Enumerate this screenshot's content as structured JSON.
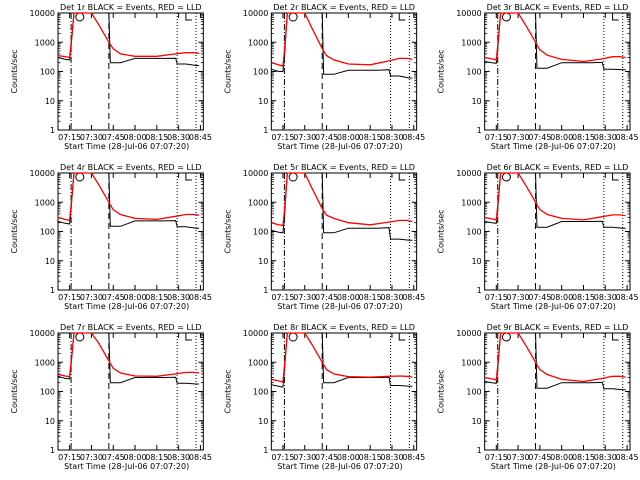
{
  "colors": {
    "events": "#000000",
    "lld": "#ff0000",
    "axes": "#000000",
    "background": "#ffffff"
  },
  "chart_data": [
    {
      "type": "line",
      "title": "Det 1r BLACK = Events, RED = LLD",
      "xlabel": "Start Time (28-Jul-06 07:07:20)",
      "ylabel": "Counts/sec",
      "scale": "log",
      "ylim": [
        1,
        10000
      ],
      "xticks": [
        "07:15",
        "07:30",
        "07:45",
        "08:00",
        "08:15",
        "08:30",
        "08:45"
      ],
      "yticks": [
        "1",
        "10",
        "100",
        "1000",
        "10000"
      ],
      "markers": {
        "dashdot": "07:16",
        "dashed": "07:42",
        "dotted": [
          "08:29",
          "08:42"
        ]
      },
      "series": [
        {
          "name": "Events",
          "x": [
            "07:07",
            "07:12",
            "07:15",
            "07:16",
            "07:18",
            "07:20",
            "07:42",
            "07:43",
            "07:50",
            "08:00",
            "08:10",
            "08:20",
            "08:28",
            "08:29",
            "08:35",
            "08:42",
            "08:44"
          ],
          "y": [
            300,
            260,
            250,
            700,
            10000,
            10000,
            10000,
            200,
            200,
            280,
            280,
            280,
            285,
            180,
            180,
            160,
            160
          ]
        },
        {
          "name": "LLD",
          "x": [
            "07:07",
            "07:12",
            "07:15",
            "07:16",
            "07:18",
            "07:30",
            "07:35",
            "07:42",
            "07:45",
            "07:50",
            "08:00",
            "08:15",
            "08:28",
            "08:35",
            "08:40",
            "08:44"
          ],
          "y": [
            350,
            320,
            300,
            900,
            10000,
            10000,
            4000,
            1000,
            600,
            400,
            330,
            330,
            400,
            440,
            440,
            420
          ]
        }
      ]
    },
    {
      "type": "line",
      "title": "Det 2r BLACK = Events, RED = LLD",
      "xlabel": "Start Time (28-Jul-06 07:07:20)",
      "ylabel": "Counts/sec",
      "scale": "log",
      "ylim": [
        1,
        10000
      ],
      "xticks": [
        "07:15",
        "07:30",
        "07:45",
        "08:00",
        "08:15",
        "08:30",
        "08:45"
      ],
      "yticks": [
        "1",
        "10",
        "100",
        "1000",
        "10000"
      ],
      "markers": {
        "dashdot": "07:16",
        "dashed": "07:42",
        "dotted": [
          "08:29",
          "08:42"
        ]
      },
      "series": [
        {
          "name": "Events",
          "x": [
            "07:07",
            "07:12",
            "07:15",
            "07:16",
            "07:18",
            "07:20",
            "07:42",
            "07:43",
            "07:50",
            "08:00",
            "08:10",
            "08:20",
            "08:28",
            "08:29",
            "08:35",
            "08:42",
            "08:44"
          ],
          "y": [
            120,
            100,
            100,
            300,
            10000,
            10000,
            10000,
            80,
            80,
            110,
            110,
            110,
            115,
            70,
            70,
            60,
            60
          ]
        },
        {
          "name": "LLD",
          "x": [
            "07:07",
            "07:12",
            "07:15",
            "07:16",
            "07:18",
            "07:30",
            "07:35",
            "07:42",
            "07:45",
            "07:50",
            "08:00",
            "08:15",
            "08:28",
            "08:35",
            "08:40",
            "08:44"
          ],
          "y": [
            200,
            170,
            150,
            500,
            10000,
            10000,
            3000,
            600,
            350,
            250,
            180,
            170,
            230,
            280,
            280,
            260
          ]
        }
      ]
    },
    {
      "type": "line",
      "title": "Det 3r BLACK = Events, RED = LLD",
      "xlabel": "Start Time (28-Jul-06 07:07:20)",
      "ylabel": "Counts/sec",
      "scale": "log",
      "ylim": [
        1,
        10000
      ],
      "xticks": [
        "07:15",
        "07:30",
        "07:45",
        "08:00",
        "08:15",
        "08:30",
        "08:45"
      ],
      "yticks": [
        "1",
        "10",
        "100",
        "1000",
        "10000"
      ],
      "markers": {
        "dashdot": "07:16",
        "dashed": "07:42",
        "dotted": [
          "08:29",
          "08:42"
        ]
      },
      "series": [
        {
          "name": "Events",
          "x": [
            "07:07",
            "07:12",
            "07:15",
            "07:16",
            "07:18",
            "07:20",
            "07:42",
            "07:43",
            "07:50",
            "08:00",
            "08:10",
            "08:20",
            "08:28",
            "08:29",
            "08:35",
            "08:42",
            "08:44"
          ],
          "y": [
            220,
            200,
            190,
            600,
            10000,
            10000,
            10000,
            130,
            130,
            200,
            200,
            200,
            205,
            120,
            120,
            115,
            115
          ]
        },
        {
          "name": "LLD",
          "x": [
            "07:07",
            "07:12",
            "07:15",
            "07:16",
            "07:18",
            "07:30",
            "07:35",
            "07:42",
            "07:45",
            "07:50",
            "08:00",
            "08:15",
            "08:28",
            "08:35",
            "08:40",
            "08:44"
          ],
          "y": [
            300,
            270,
            250,
            800,
            10000,
            10000,
            4000,
            1000,
            550,
            360,
            260,
            220,
            270,
            320,
            320,
            300
          ]
        }
      ]
    },
    {
      "type": "line",
      "title": "Det 4r BLACK = Events, RED = LLD",
      "xlabel": "Start Time (28-Jul-06 07:07:20)",
      "ylabel": "Counts/sec",
      "scale": "log",
      "ylim": [
        1,
        10000
      ],
      "xticks": [
        "07:15",
        "07:30",
        "07:45",
        "08:00",
        "08:15",
        "08:30",
        "08:45"
      ],
      "yticks": [
        "1",
        "10",
        "100",
        "1000",
        "10000"
      ],
      "markers": {
        "dashdot": "07:16",
        "dashed": "07:42",
        "dotted": [
          "08:29",
          "08:42"
        ]
      },
      "series": [
        {
          "name": "Events",
          "x": [
            "07:07",
            "07:12",
            "07:15",
            "07:16",
            "07:18",
            "07:20",
            "07:42",
            "07:43",
            "07:50",
            "08:00",
            "08:10",
            "08:20",
            "08:28",
            "08:29",
            "08:35",
            "08:42",
            "08:44"
          ],
          "y": [
            220,
            190,
            180,
            600,
            10000,
            10000,
            10000,
            150,
            150,
            230,
            230,
            230,
            235,
            145,
            145,
            130,
            130
          ]
        },
        {
          "name": "LLD",
          "x": [
            "07:07",
            "07:12",
            "07:15",
            "07:16",
            "07:18",
            "07:30",
            "07:35",
            "07:42",
            "07:45",
            "07:50",
            "08:00",
            "08:15",
            "08:28",
            "08:35",
            "08:40",
            "08:44"
          ],
          "y": [
            300,
            260,
            240,
            800,
            10000,
            10000,
            4000,
            1000,
            550,
            380,
            280,
            260,
            330,
            380,
            380,
            360
          ]
        }
      ]
    },
    {
      "type": "line",
      "title": "Det 5r BLACK = Events, RED = LLD",
      "xlabel": "Start Time (28-Jul-06 07:07:20)",
      "ylabel": "Counts/sec",
      "scale": "log",
      "ylim": [
        1,
        10000
      ],
      "xticks": [
        "07:15",
        "07:30",
        "07:45",
        "08:00",
        "08:15",
        "08:30",
        "08:45"
      ],
      "yticks": [
        "1",
        "10",
        "100",
        "1000",
        "10000"
      ],
      "markers": {
        "dashdot": "07:16",
        "dashed": "07:42",
        "dotted": [
          "08:29",
          "08:42"
        ]
      },
      "series": [
        {
          "name": "Events",
          "x": [
            "07:07",
            "07:12",
            "07:15",
            "07:16",
            "07:18",
            "07:20",
            "07:42",
            "07:43",
            "07:50",
            "08:00",
            "08:10",
            "08:20",
            "08:28",
            "08:29",
            "08:35",
            "08:42",
            "08:44"
          ],
          "y": [
            110,
            95,
            90,
            300,
            10000,
            10000,
            10000,
            90,
            90,
            130,
            130,
            130,
            135,
            55,
            55,
            50,
            50
          ]
        },
        {
          "name": "LLD",
          "x": [
            "07:07",
            "07:12",
            "07:15",
            "07:16",
            "07:18",
            "07:30",
            "07:35",
            "07:42",
            "07:45",
            "07:50",
            "08:00",
            "08:15",
            "08:28",
            "08:35",
            "08:40",
            "08:44"
          ],
          "y": [
            200,
            170,
            160,
            500,
            10000,
            10000,
            3000,
            600,
            360,
            280,
            200,
            170,
            210,
            240,
            240,
            220
          ]
        }
      ]
    },
    {
      "type": "line",
      "title": "Det 6r BLACK = Events, RED = LLD",
      "xlabel": "Start Time (28-Jul-06 07:07:20)",
      "ylabel": "Counts/sec",
      "scale": "log",
      "ylim": [
        1,
        10000
      ],
      "xticks": [
        "07:15",
        "07:30",
        "07:45",
        "08:00",
        "08:15",
        "08:30",
        "08:45"
      ],
      "yticks": [
        "1",
        "10",
        "100",
        "1000",
        "10000"
      ],
      "markers": {
        "dashdot": "07:16",
        "dashed": "07:42",
        "dotted": [
          "08:29",
          "08:42"
        ]
      },
      "series": [
        {
          "name": "Events",
          "x": [
            "07:07",
            "07:12",
            "07:15",
            "07:16",
            "07:18",
            "07:20",
            "07:42",
            "07:43",
            "07:50",
            "08:00",
            "08:10",
            "08:20",
            "08:28",
            "08:29",
            "08:35",
            "08:42",
            "08:44"
          ],
          "y": [
            220,
            200,
            190,
            600,
            10000,
            10000,
            10000,
            140,
            140,
            220,
            220,
            220,
            225,
            140,
            140,
            130,
            130
          ]
        },
        {
          "name": "LLD",
          "x": [
            "07:07",
            "07:12",
            "07:15",
            "07:16",
            "07:18",
            "07:30",
            "07:35",
            "07:42",
            "07:45",
            "07:50",
            "08:00",
            "08:15",
            "08:28",
            "08:35",
            "08:40",
            "08:44"
          ],
          "y": [
            300,
            270,
            250,
            800,
            10000,
            10000,
            4000,
            1000,
            560,
            380,
            280,
            250,
            320,
            370,
            370,
            350
          ]
        }
      ]
    },
    {
      "type": "line",
      "title": "Det 7r BLACK = Events, RED = LLD",
      "xlabel": "Start Time (28-Jul-06 07:07:20)",
      "ylabel": "Counts/sec",
      "scale": "log",
      "ylim": [
        1,
        10000
      ],
      "xticks": [
        "07:15",
        "07:30",
        "07:45",
        "08:00",
        "08:15",
        "08:30",
        "08:45"
      ],
      "yticks": [
        "1",
        "10",
        "100",
        "1000",
        "10000"
      ],
      "markers": {
        "dashdot": "07:16",
        "dashed": "07:42",
        "dotted": [
          "08:29",
          "08:42"
        ]
      },
      "series": [
        {
          "name": "Events",
          "x": [
            "07:07",
            "07:12",
            "07:15",
            "07:16",
            "07:18",
            "07:20",
            "07:42",
            "07:43",
            "07:50",
            "08:00",
            "08:10",
            "08:20",
            "08:28",
            "08:29",
            "08:35",
            "08:42",
            "08:44"
          ],
          "y": [
            330,
            280,
            270,
            800,
            10000,
            10000,
            10000,
            200,
            200,
            300,
            300,
            300,
            305,
            190,
            190,
            180,
            180
          ]
        },
        {
          "name": "LLD",
          "x": [
            "07:07",
            "07:12",
            "07:15",
            "07:16",
            "07:18",
            "07:30",
            "07:35",
            "07:42",
            "07:45",
            "07:50",
            "08:00",
            "08:15",
            "08:28",
            "08:35",
            "08:40",
            "08:44"
          ],
          "y": [
            380,
            340,
            320,
            1000,
            10000,
            10000,
            4500,
            1100,
            620,
            430,
            340,
            330,
            400,
            450,
            450,
            430
          ]
        }
      ]
    },
    {
      "type": "line",
      "title": "Det 8r BLACK = Events, RED = LLD",
      "xlabel": "Start Time (28-Jul-06 07:07:20)",
      "ylabel": "Counts/sec",
      "scale": "log",
      "ylim": [
        1,
        10000
      ],
      "xticks": [
        "07:15",
        "07:30",
        "07:45",
        "08:00",
        "08:15",
        "08:30",
        "08:45"
      ],
      "yticks": [
        "1",
        "10",
        "100",
        "1000",
        "10000"
      ],
      "markers": {
        "dashdot": "07:16",
        "dashed": "07:42",
        "dotted": [
          "08:29",
          "08:42"
        ]
      },
      "series": [
        {
          "name": "Events",
          "x": [
            "07:07",
            "07:12",
            "07:15",
            "07:16",
            "07:18",
            "07:20",
            "07:42",
            "07:43",
            "07:50",
            "08:00",
            "08:10",
            "08:20",
            "08:28",
            "08:29",
            "08:35",
            "08:42",
            "08:44"
          ],
          "y": [
            170,
            150,
            140,
            500,
            10000,
            10000,
            10000,
            200,
            200,
            300,
            300,
            300,
            305,
            160,
            160,
            150,
            150
          ]
        },
        {
          "name": "LLD",
          "x": [
            "07:07",
            "07:12",
            "07:15",
            "07:16",
            "07:18",
            "07:30",
            "07:35",
            "07:42",
            "07:45",
            "07:50",
            "08:00",
            "08:15",
            "08:28",
            "08:35",
            "08:40",
            "08:44"
          ],
          "y": [
            260,
            230,
            210,
            700,
            10000,
            10000,
            4000,
            1000,
            560,
            400,
            320,
            310,
            330,
            340,
            330,
            310
          ]
        }
      ]
    },
    {
      "type": "line",
      "title": "Det 9r BLACK = Events, RED = LLD",
      "xlabel": "Start Time (28-Jul-06 07:07:20)",
      "ylabel": "Counts/sec",
      "scale": "log",
      "ylim": [
        1,
        10000
      ],
      "xticks": [
        "07:15",
        "07:30",
        "07:45",
        "08:00",
        "08:15",
        "08:30",
        "08:45"
      ],
      "yticks": [
        "1",
        "10",
        "100",
        "1000",
        "10000"
      ],
      "markers": {
        "dashdot": "07:16",
        "dashed": "07:42",
        "dotted": [
          "08:29",
          "08:42"
        ]
      },
      "series": [
        {
          "name": "Events",
          "x": [
            "07:07",
            "07:12",
            "07:15",
            "07:16",
            "07:18",
            "07:20",
            "07:42",
            "07:43",
            "07:50",
            "08:00",
            "08:10",
            "08:20",
            "08:28",
            "08:29",
            "08:35",
            "08:42",
            "08:44"
          ],
          "y": [
            220,
            200,
            190,
            600,
            10000,
            10000,
            10000,
            130,
            130,
            200,
            200,
            200,
            205,
            125,
            125,
            115,
            115
          ]
        },
        {
          "name": "LLD",
          "x": [
            "07:07",
            "07:12",
            "07:15",
            "07:16",
            "07:18",
            "07:30",
            "07:35",
            "07:42",
            "07:45",
            "07:50",
            "08:00",
            "08:15",
            "08:28",
            "08:35",
            "08:40",
            "08:44"
          ],
          "y": [
            300,
            270,
            250,
            800,
            10000,
            10000,
            4000,
            1000,
            560,
            380,
            260,
            220,
            280,
            330,
            330,
            310
          ]
        }
      ]
    }
  ]
}
